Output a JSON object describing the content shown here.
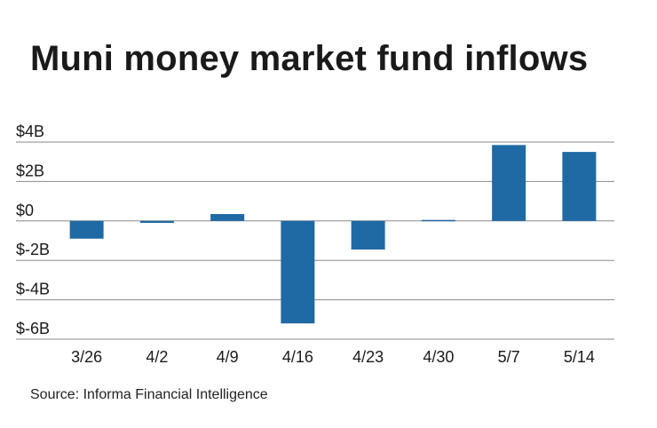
{
  "chart_data": {
    "type": "bar",
    "title": "Muni money market fund inflows",
    "source": "Source: Informa Financial Intelligence",
    "categories": [
      "3/26",
      "4/2",
      "4/9",
      "4/16",
      "4/23",
      "4/30",
      "5/7",
      "5/14"
    ],
    "values": [
      -0.9,
      -0.1,
      0.35,
      -5.2,
      -1.45,
      0.05,
      3.85,
      3.5
    ],
    "y_ticks": [
      4,
      2,
      0,
      -2,
      -4,
      -6
    ],
    "y_tick_labels": [
      "$4B",
      "$2B",
      "$0",
      "$-2B",
      "$-4B",
      "$-6B"
    ],
    "ylim": [
      -6,
      4
    ],
    "xlabel": "",
    "ylabel": "",
    "grid": true,
    "bar_color": "#1f6aa5",
    "grid_color": "#8a8a8a"
  }
}
